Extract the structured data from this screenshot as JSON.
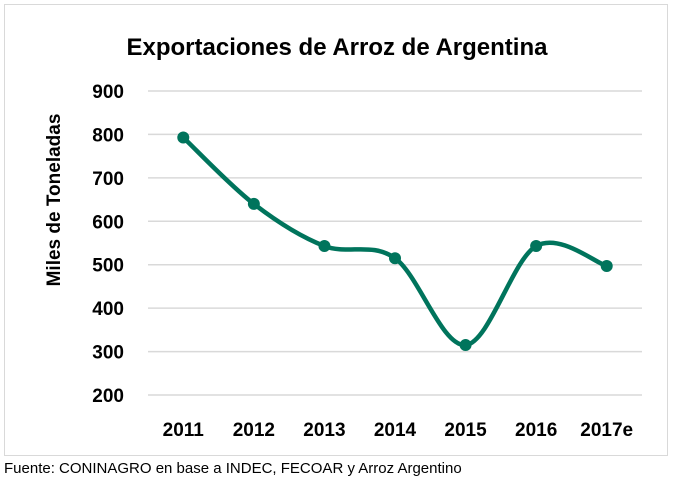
{
  "chart_data": {
    "type": "line",
    "title": "Exportaciones de Arroz de Argentina",
    "xlabel": "",
    "ylabel": "Miles de Toneladas",
    "categories": [
      "2011",
      "2012",
      "2013",
      "2014",
      "2015",
      "2016",
      "2017e"
    ],
    "series": [
      {
        "name": "Exportaciones",
        "values": [
          793,
          640,
          543,
          515,
          315,
          543,
          497
        ],
        "color": "#00745c",
        "smooth": true,
        "markers": true
      }
    ],
    "yticks": [
      "900",
      "800",
      "700",
      "600",
      "500",
      "400",
      "300",
      "200"
    ],
    "ylim": [
      200,
      900
    ],
    "grid": true,
    "legend": "none"
  },
  "source_note": "Fuente: CONINAGRO en base a INDEC, FECOAR y Arroz Argentino"
}
